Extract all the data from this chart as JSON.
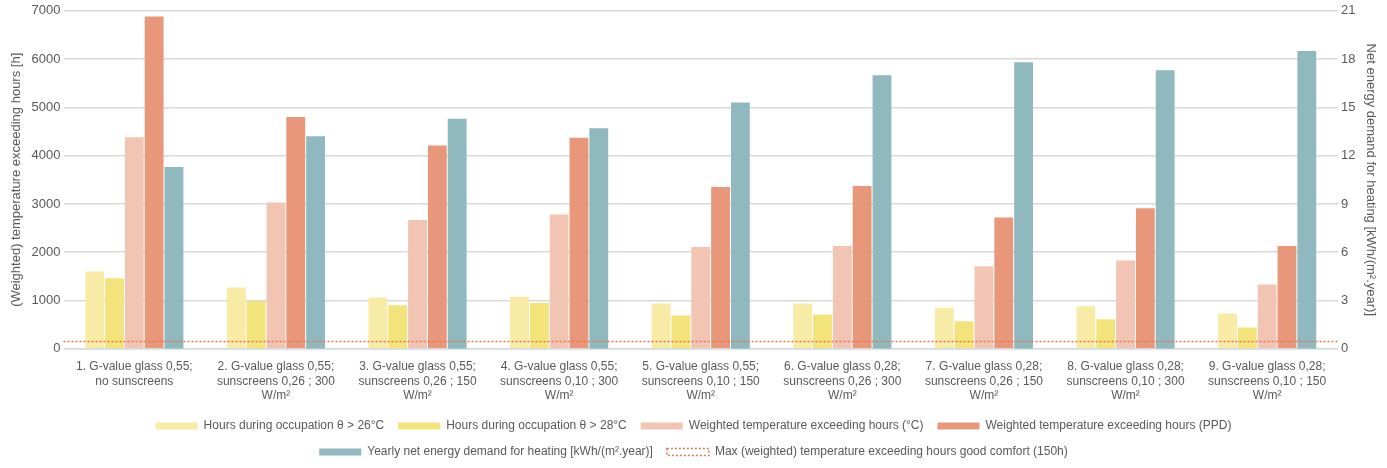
{
  "chart_data": {
    "type": "bar",
    "ylabel": "(Weighted) temperature exceeding hours [h]",
    "y2label": "Net energy demand for heating [kWh/(m².year)]",
    "categories": [
      "1. G-value glass 0,55; no sunscreens",
      "2. G-value glass 0,55; sunscreens 0,26 ; 300 W/m²",
      "3. G-value glass 0,55; sunscreens 0,26 ; 150 W/m²",
      "4. G-value glass 0,55; sunscreens 0,10 ; 300 W/m²",
      "5. G-value glass 0,55; sunscreens 0,10 ; 150 W/m²",
      "6. G-value glass 0,28; sunscreens 0,26 ; 300 W/m²",
      "7. G-value glass 0,28; sunscreens 0,26 ; 150 W/m²",
      "8. G-value glass 0,28; sunscreens 0,10 ; 300 W/m²",
      "9. G-value glass 0,28; sunscreens 0,10 ; 150 W/m²"
    ],
    "series": [
      {
        "name": "Hours during occupation θ > 26°C",
        "color": "#f7eba6",
        "values": [
          1600,
          1270,
          1060,
          1080,
          940,
          940,
          850,
          880,
          730
        ]
      },
      {
        "name": "Hours during occupation θ > 28°C",
        "color": "#f2e47a",
        "values": [
          1460,
          990,
          900,
          950,
          690,
          710,
          570,
          610,
          440
        ]
      },
      {
        "name": "Weighted temperature exceeding hours (°C)",
        "color": "#f2c4b4",
        "values": [
          4380,
          3030,
          2670,
          2780,
          2110,
          2130,
          1710,
          1830,
          1330
        ]
      },
      {
        "name": "Weighted temperature exceeding hours (PPD)",
        "color": "#e8977a",
        "values": [
          6880,
          4800,
          4210,
          4370,
          3350,
          3370,
          2720,
          2910,
          2130
        ]
      },
      {
        "name": "Yearly net energy demand for heating [kWh/(m².year)]",
        "color": "#8fb8bf",
        "axis": "y2",
        "values": [
          11.3,
          13.2,
          14.3,
          13.7,
          15.3,
          17.0,
          17.8,
          17.3,
          18.5
        ]
      }
    ],
    "ref_lines": [
      {
        "axis": "y",
        "value": 150,
        "label": "Max (weighted) temperature exceeding hours good comfort (150h)",
        "color": "#e8774f",
        "line_style": "dotted"
      }
    ],
    "ylim": [
      0,
      7000
    ],
    "yticks": [
      0,
      1000,
      2000,
      3000,
      4000,
      5000,
      6000,
      7000
    ],
    "y2lim": [
      0,
      21
    ],
    "y2ticks": [
      0,
      3,
      6,
      9,
      12,
      15,
      18,
      21
    ],
    "grid": "y",
    "legend": "bottom"
  }
}
